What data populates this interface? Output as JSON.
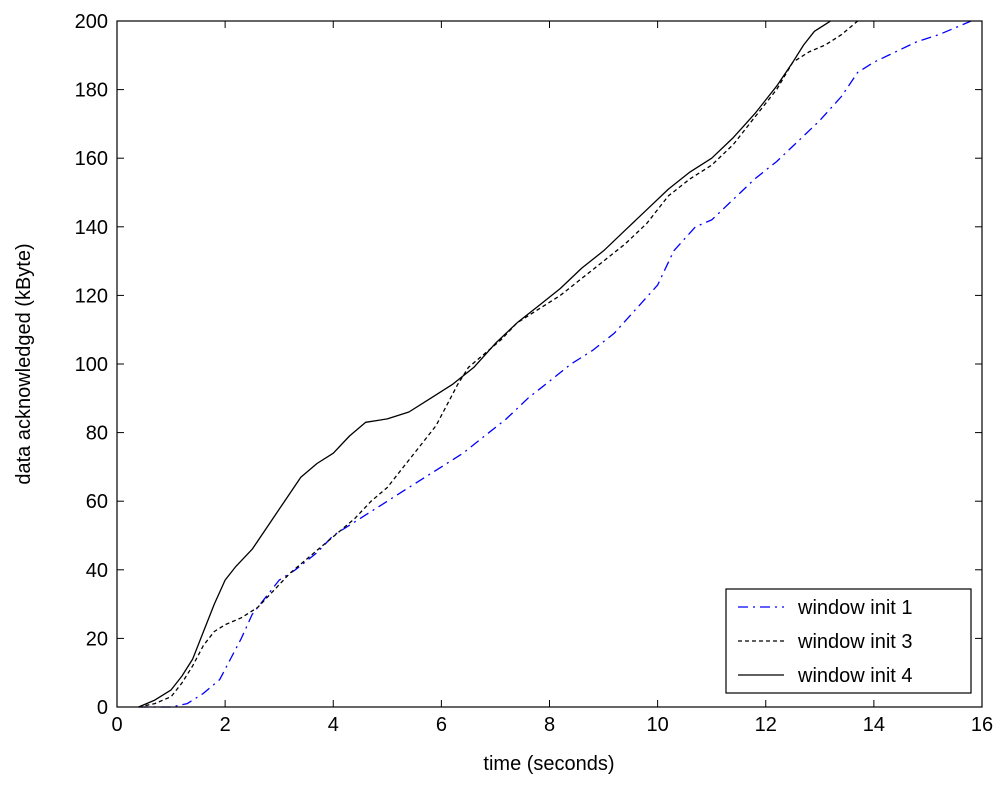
{
  "chart_data": {
    "type": "line",
    "title": "",
    "xlabel": "time (seconds)",
    "ylabel": "data acknowledged (kByte)",
    "xlim": [
      0,
      16
    ],
    "ylim": [
      0,
      200
    ],
    "xticks": [
      0,
      2,
      4,
      6,
      8,
      10,
      12,
      14,
      16
    ],
    "yticks": [
      0,
      20,
      40,
      60,
      80,
      100,
      120,
      140,
      160,
      180,
      200
    ],
    "x_tick_labels": [
      "0",
      "2",
      "4",
      "6",
      "8",
      "10",
      "12",
      "14",
      "16"
    ],
    "y_tick_labels": [
      "0",
      "20",
      "40",
      "60",
      "80",
      "100",
      "120",
      "140",
      "160",
      "180",
      "200"
    ],
    "grid": false,
    "legend_position": "bottom-right",
    "series": [
      {
        "name": "window init 1",
        "color": "#0000ff",
        "style": "dash-dot",
        "points": [
          [
            0.4,
            0
          ],
          [
            1.0,
            0
          ],
          [
            1.3,
            1
          ],
          [
            1.6,
            4
          ],
          [
            1.9,
            8
          ],
          [
            2.1,
            14
          ],
          [
            2.3,
            20
          ],
          [
            2.5,
            27
          ],
          [
            2.8,
            33
          ],
          [
            3.0,
            37
          ],
          [
            3.3,
            40
          ],
          [
            3.7,
            45
          ],
          [
            4.0,
            50
          ],
          [
            4.4,
            54
          ],
          [
            4.8,
            58
          ],
          [
            5.2,
            62
          ],
          [
            5.6,
            66
          ],
          [
            6.0,
            70
          ],
          [
            6.4,
            74
          ],
          [
            6.8,
            79
          ],
          [
            7.2,
            84
          ],
          [
            7.6,
            90
          ],
          [
            8.0,
            95
          ],
          [
            8.4,
            100
          ],
          [
            8.8,
            104
          ],
          [
            9.2,
            109
          ],
          [
            9.6,
            116
          ],
          [
            10.0,
            123
          ],
          [
            10.3,
            133
          ],
          [
            10.7,
            140
          ],
          [
            11.0,
            142
          ],
          [
            11.4,
            148
          ],
          [
            11.8,
            154
          ],
          [
            12.2,
            159
          ],
          [
            12.6,
            165
          ],
          [
            13.0,
            171
          ],
          [
            13.4,
            178
          ],
          [
            13.7,
            185
          ],
          [
            14.0,
            188
          ],
          [
            14.4,
            191
          ],
          [
            14.8,
            194
          ],
          [
            15.2,
            196
          ],
          [
            15.5,
            198
          ],
          [
            15.8,
            200
          ]
        ]
      },
      {
        "name": "window init 3",
        "color": "#000000",
        "style": "dashed",
        "points": [
          [
            0.4,
            0
          ],
          [
            0.7,
            1
          ],
          [
            1.0,
            3
          ],
          [
            1.2,
            7
          ],
          [
            1.4,
            12
          ],
          [
            1.6,
            18
          ],
          [
            1.8,
            22
          ],
          [
            2.0,
            24
          ],
          [
            2.3,
            26
          ],
          [
            2.6,
            29
          ],
          [
            2.9,
            34
          ],
          [
            3.2,
            39
          ],
          [
            3.5,
            43
          ],
          [
            3.8,
            47
          ],
          [
            4.1,
            51
          ],
          [
            4.4,
            55
          ],
          [
            4.7,
            60
          ],
          [
            5.0,
            64
          ],
          [
            5.3,
            70
          ],
          [
            5.6,
            76
          ],
          [
            5.9,
            82
          ],
          [
            6.1,
            88
          ],
          [
            6.3,
            94
          ],
          [
            6.5,
            99
          ],
          [
            6.8,
            103
          ],
          [
            7.1,
            107
          ],
          [
            7.4,
            112
          ],
          [
            7.8,
            116
          ],
          [
            8.2,
            120
          ],
          [
            8.6,
            125
          ],
          [
            9.0,
            130
          ],
          [
            9.4,
            135
          ],
          [
            9.8,
            141
          ],
          [
            10.2,
            149
          ],
          [
            10.6,
            154
          ],
          [
            11.0,
            158
          ],
          [
            11.4,
            164
          ],
          [
            11.8,
            172
          ],
          [
            12.2,
            180
          ],
          [
            12.5,
            188
          ],
          [
            12.8,
            191
          ],
          [
            13.1,
            193
          ],
          [
            13.4,
            196
          ],
          [
            13.7,
            200
          ]
        ]
      },
      {
        "name": "window init 4",
        "color": "#000000",
        "style": "solid",
        "points": [
          [
            0.4,
            0
          ],
          [
            0.7,
            2
          ],
          [
            1.0,
            5
          ],
          [
            1.2,
            9
          ],
          [
            1.4,
            14
          ],
          [
            1.6,
            22
          ],
          [
            1.8,
            30
          ],
          [
            2.0,
            37
          ],
          [
            2.2,
            41
          ],
          [
            2.5,
            46
          ],
          [
            2.8,
            53
          ],
          [
            3.1,
            60
          ],
          [
            3.4,
            67
          ],
          [
            3.7,
            71
          ],
          [
            4.0,
            74
          ],
          [
            4.3,
            79
          ],
          [
            4.6,
            83
          ],
          [
            5.0,
            84
          ],
          [
            5.4,
            86
          ],
          [
            5.8,
            90
          ],
          [
            6.2,
            94
          ],
          [
            6.6,
            99
          ],
          [
            7.0,
            106
          ],
          [
            7.4,
            112
          ],
          [
            7.8,
            117
          ],
          [
            8.2,
            122
          ],
          [
            8.6,
            128
          ],
          [
            9.0,
            133
          ],
          [
            9.4,
            139
          ],
          [
            9.8,
            145
          ],
          [
            10.2,
            151
          ],
          [
            10.6,
            156
          ],
          [
            11.0,
            160
          ],
          [
            11.4,
            166
          ],
          [
            11.8,
            173
          ],
          [
            12.2,
            181
          ],
          [
            12.5,
            188
          ],
          [
            12.7,
            193
          ],
          [
            12.9,
            197
          ],
          [
            13.1,
            199
          ],
          [
            13.2,
            200
          ]
        ]
      }
    ]
  }
}
